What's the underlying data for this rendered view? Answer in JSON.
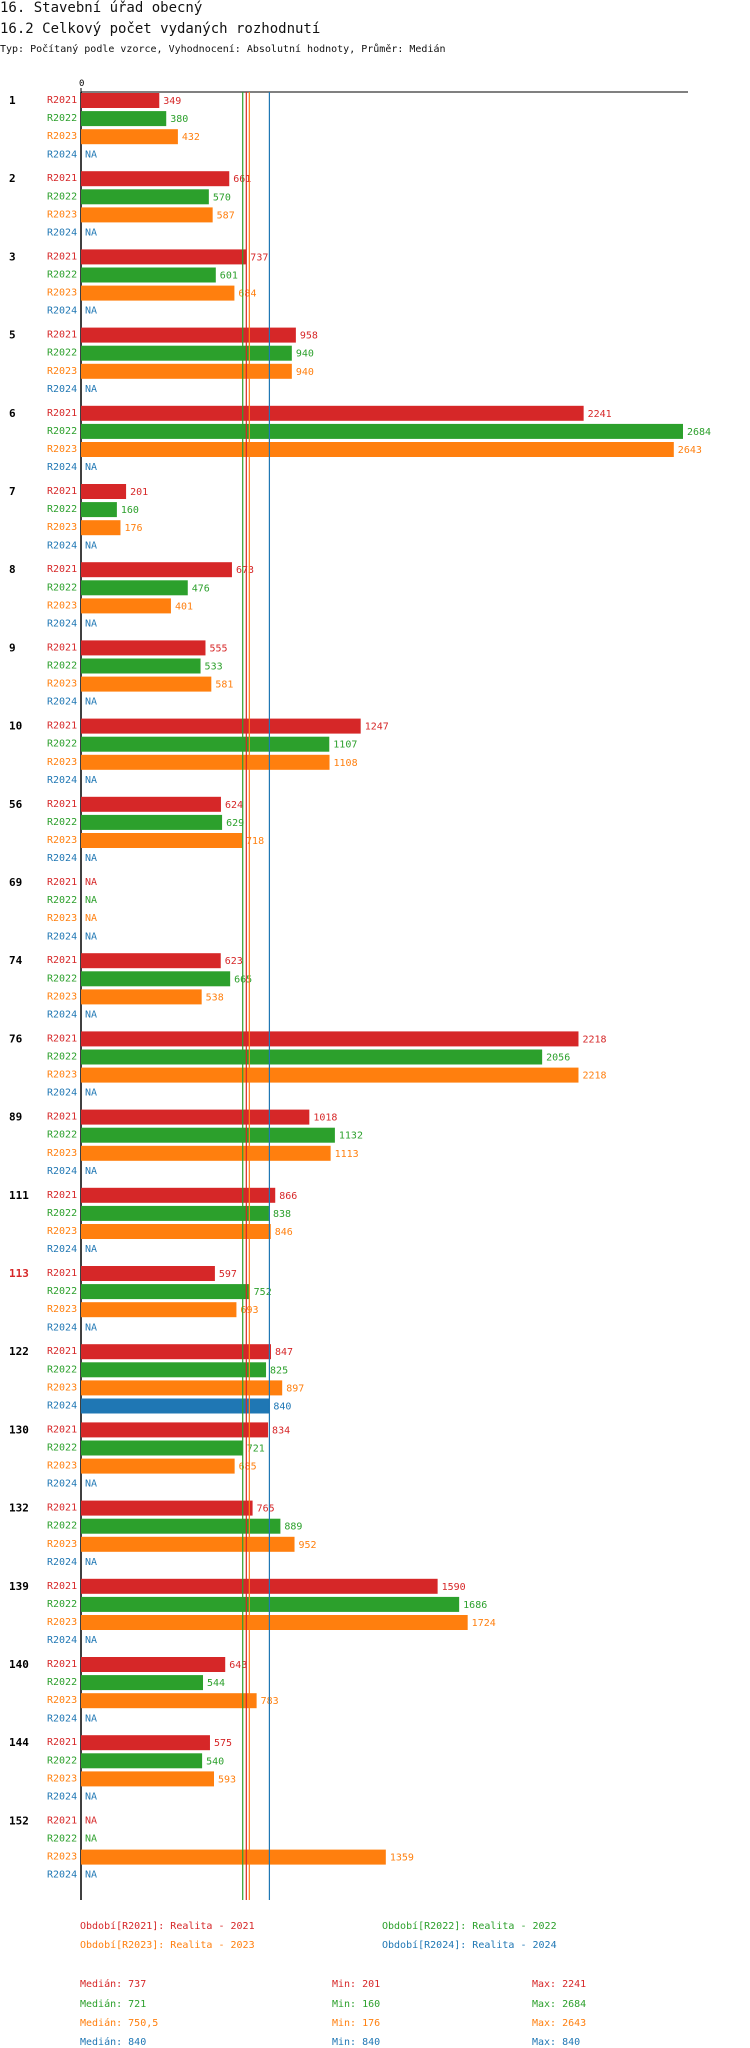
{
  "header": {
    "title": "16. Stavební úřad obecný",
    "subtitle": "16.2 Celkový počet vydaných rozhodnutí",
    "meta": "Typ: Počítaný podle vzorce, Vyhodnocení: Absolutní hodnoty, Průměr: Medián"
  },
  "colors": {
    "R2021": "#d62728",
    "R2022": "#2ca02c",
    "R2023": "#ff7f0e",
    "R2024": "#1f77b4"
  },
  "chart_data": {
    "type": "bar",
    "orientation": "horizontal",
    "axis_zero_label": "0",
    "xlim": [
      0,
      2684
    ],
    "series_names": [
      "R2021",
      "R2022",
      "R2023",
      "R2024"
    ],
    "highlight_category": "113",
    "categories": [
      {
        "label": "1",
        "values": [
          349,
          380,
          432,
          null
        ]
      },
      {
        "label": "2",
        "values": [
          661,
          570,
          587,
          null
        ]
      },
      {
        "label": "3",
        "values": [
          737,
          601,
          684,
          null
        ]
      },
      {
        "label": "5",
        "values": [
          958,
          940,
          940,
          null
        ]
      },
      {
        "label": "6",
        "values": [
          2241,
          2684,
          2643,
          null
        ]
      },
      {
        "label": "7",
        "values": [
          201,
          160,
          176,
          null
        ]
      },
      {
        "label": "8",
        "values": [
          673,
          476,
          401,
          null
        ]
      },
      {
        "label": "9",
        "values": [
          555,
          533,
          581,
          null
        ]
      },
      {
        "label": "10",
        "values": [
          1247,
          1107,
          1108,
          null
        ]
      },
      {
        "label": "56",
        "values": [
          624,
          629,
          718,
          null
        ]
      },
      {
        "label": "69",
        "values": [
          null,
          null,
          null,
          null
        ]
      },
      {
        "label": "74",
        "values": [
          623,
          665,
          538,
          null
        ]
      },
      {
        "label": "76",
        "values": [
          2218,
          2056,
          2218,
          null
        ]
      },
      {
        "label": "89",
        "values": [
          1018,
          1132,
          1113,
          null
        ]
      },
      {
        "label": "111",
        "values": [
          866,
          838,
          846,
          null
        ]
      },
      {
        "label": "113",
        "values": [
          597,
          752,
          693,
          null
        ]
      },
      {
        "label": "122",
        "values": [
          847,
          825,
          897,
          840
        ]
      },
      {
        "label": "130",
        "values": [
          834,
          721,
          685,
          null
        ]
      },
      {
        "label": "132",
        "values": [
          765,
          889,
          952,
          null
        ]
      },
      {
        "label": "139",
        "values": [
          1590,
          1686,
          1724,
          null
        ]
      },
      {
        "label": "140",
        "values": [
          643,
          544,
          783,
          null
        ]
      },
      {
        "label": "144",
        "values": [
          575,
          540,
          593,
          null
        ]
      },
      {
        "label": "152",
        "values": [
          null,
          null,
          1359,
          null
        ]
      }
    ],
    "na_label": "NA",
    "medians": [
      737,
      721,
      750.5,
      840
    ]
  },
  "legend": [
    {
      "key": "R2021",
      "text": "Období[R2021]: Realita - 2021"
    },
    {
      "key": "R2022",
      "text": "Období[R2022]: Realita - 2022"
    },
    {
      "key": "R2023",
      "text": "Období[R2023]: Realita - 2023"
    },
    {
      "key": "R2024",
      "text": "Období[R2024]: Realita - 2024"
    }
  ],
  "stats": [
    {
      "key": "R2021",
      "median": "Medián: 737",
      "min": "Min: 201",
      "max": "Max: 2241"
    },
    {
      "key": "R2022",
      "median": "Medián: 721",
      "min": "Min: 160",
      "max": "Max: 2684"
    },
    {
      "key": "R2023",
      "median": "Medián: 750,5",
      "min": "Min: 176",
      "max": "Max: 2643"
    },
    {
      "key": "R2024",
      "median": "Medián: 840",
      "min": "Min: 840",
      "max": "Max: 840"
    }
  ]
}
